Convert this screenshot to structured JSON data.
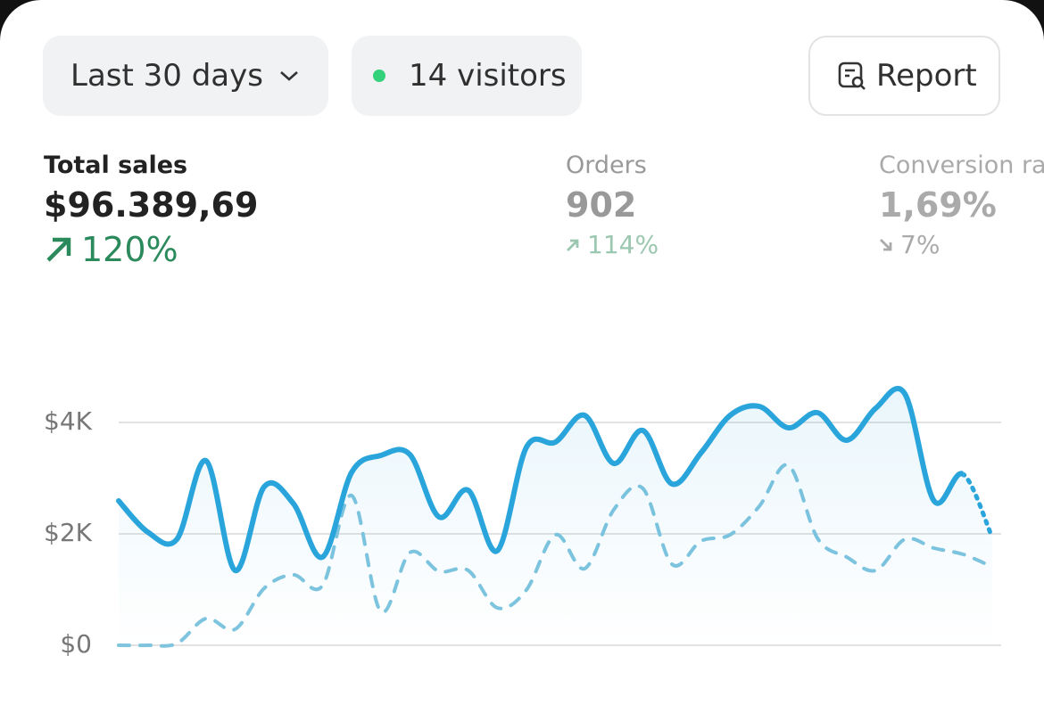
{
  "header": {
    "range_button": "Last 30 days",
    "visitors": "14 visitors",
    "report_button": "Report"
  },
  "metrics": [
    {
      "label": "Total sales",
      "value": "$96.389,69",
      "change": "120%"
    },
    {
      "label": "Orders",
      "value": "902",
      "change": "114%"
    },
    {
      "label": "Conversion rate",
      "value": "1,69%",
      "change": "7%"
    }
  ],
  "chart_data": {
    "type": "line",
    "ylim": [
      0,
      5000
    ],
    "yticks": [
      {
        "value": 0,
        "label": "$0"
      },
      {
        "value": 2000,
        "label": "$2K"
      },
      {
        "value": 4000,
        "label": "$4K"
      }
    ],
    "grid": true,
    "series": [
      {
        "color": "#2aa5dc",
        "style": "solid",
        "values": [
          2592,
          2032,
          1904,
          3312,
          1344,
          2848,
          2544,
          1584,
          3104,
          3408,
          3424,
          2304,
          2784,
          1696,
          3552,
          3648,
          4128,
          3264,
          3856,
          2896,
          3456,
          4128,
          4288,
          3904,
          4176,
          3680,
          4256,
          4512,
          2592,
          3072,
          1936
        ]
      },
      {
        "color": "#7ec4de",
        "style": "dashed",
        "values": [
          0,
          0,
          32,
          480,
          288,
          1024,
          1264,
          1072,
          2688,
          608,
          1664,
          1328,
          1344,
          672,
          992,
          1984,
          1376,
          2432,
          2816,
          1456,
          1872,
          1984,
          2496,
          3232,
          1920,
          1584,
          1344,
          1904,
          1744,
          1632,
          1408
        ]
      }
    ]
  }
}
